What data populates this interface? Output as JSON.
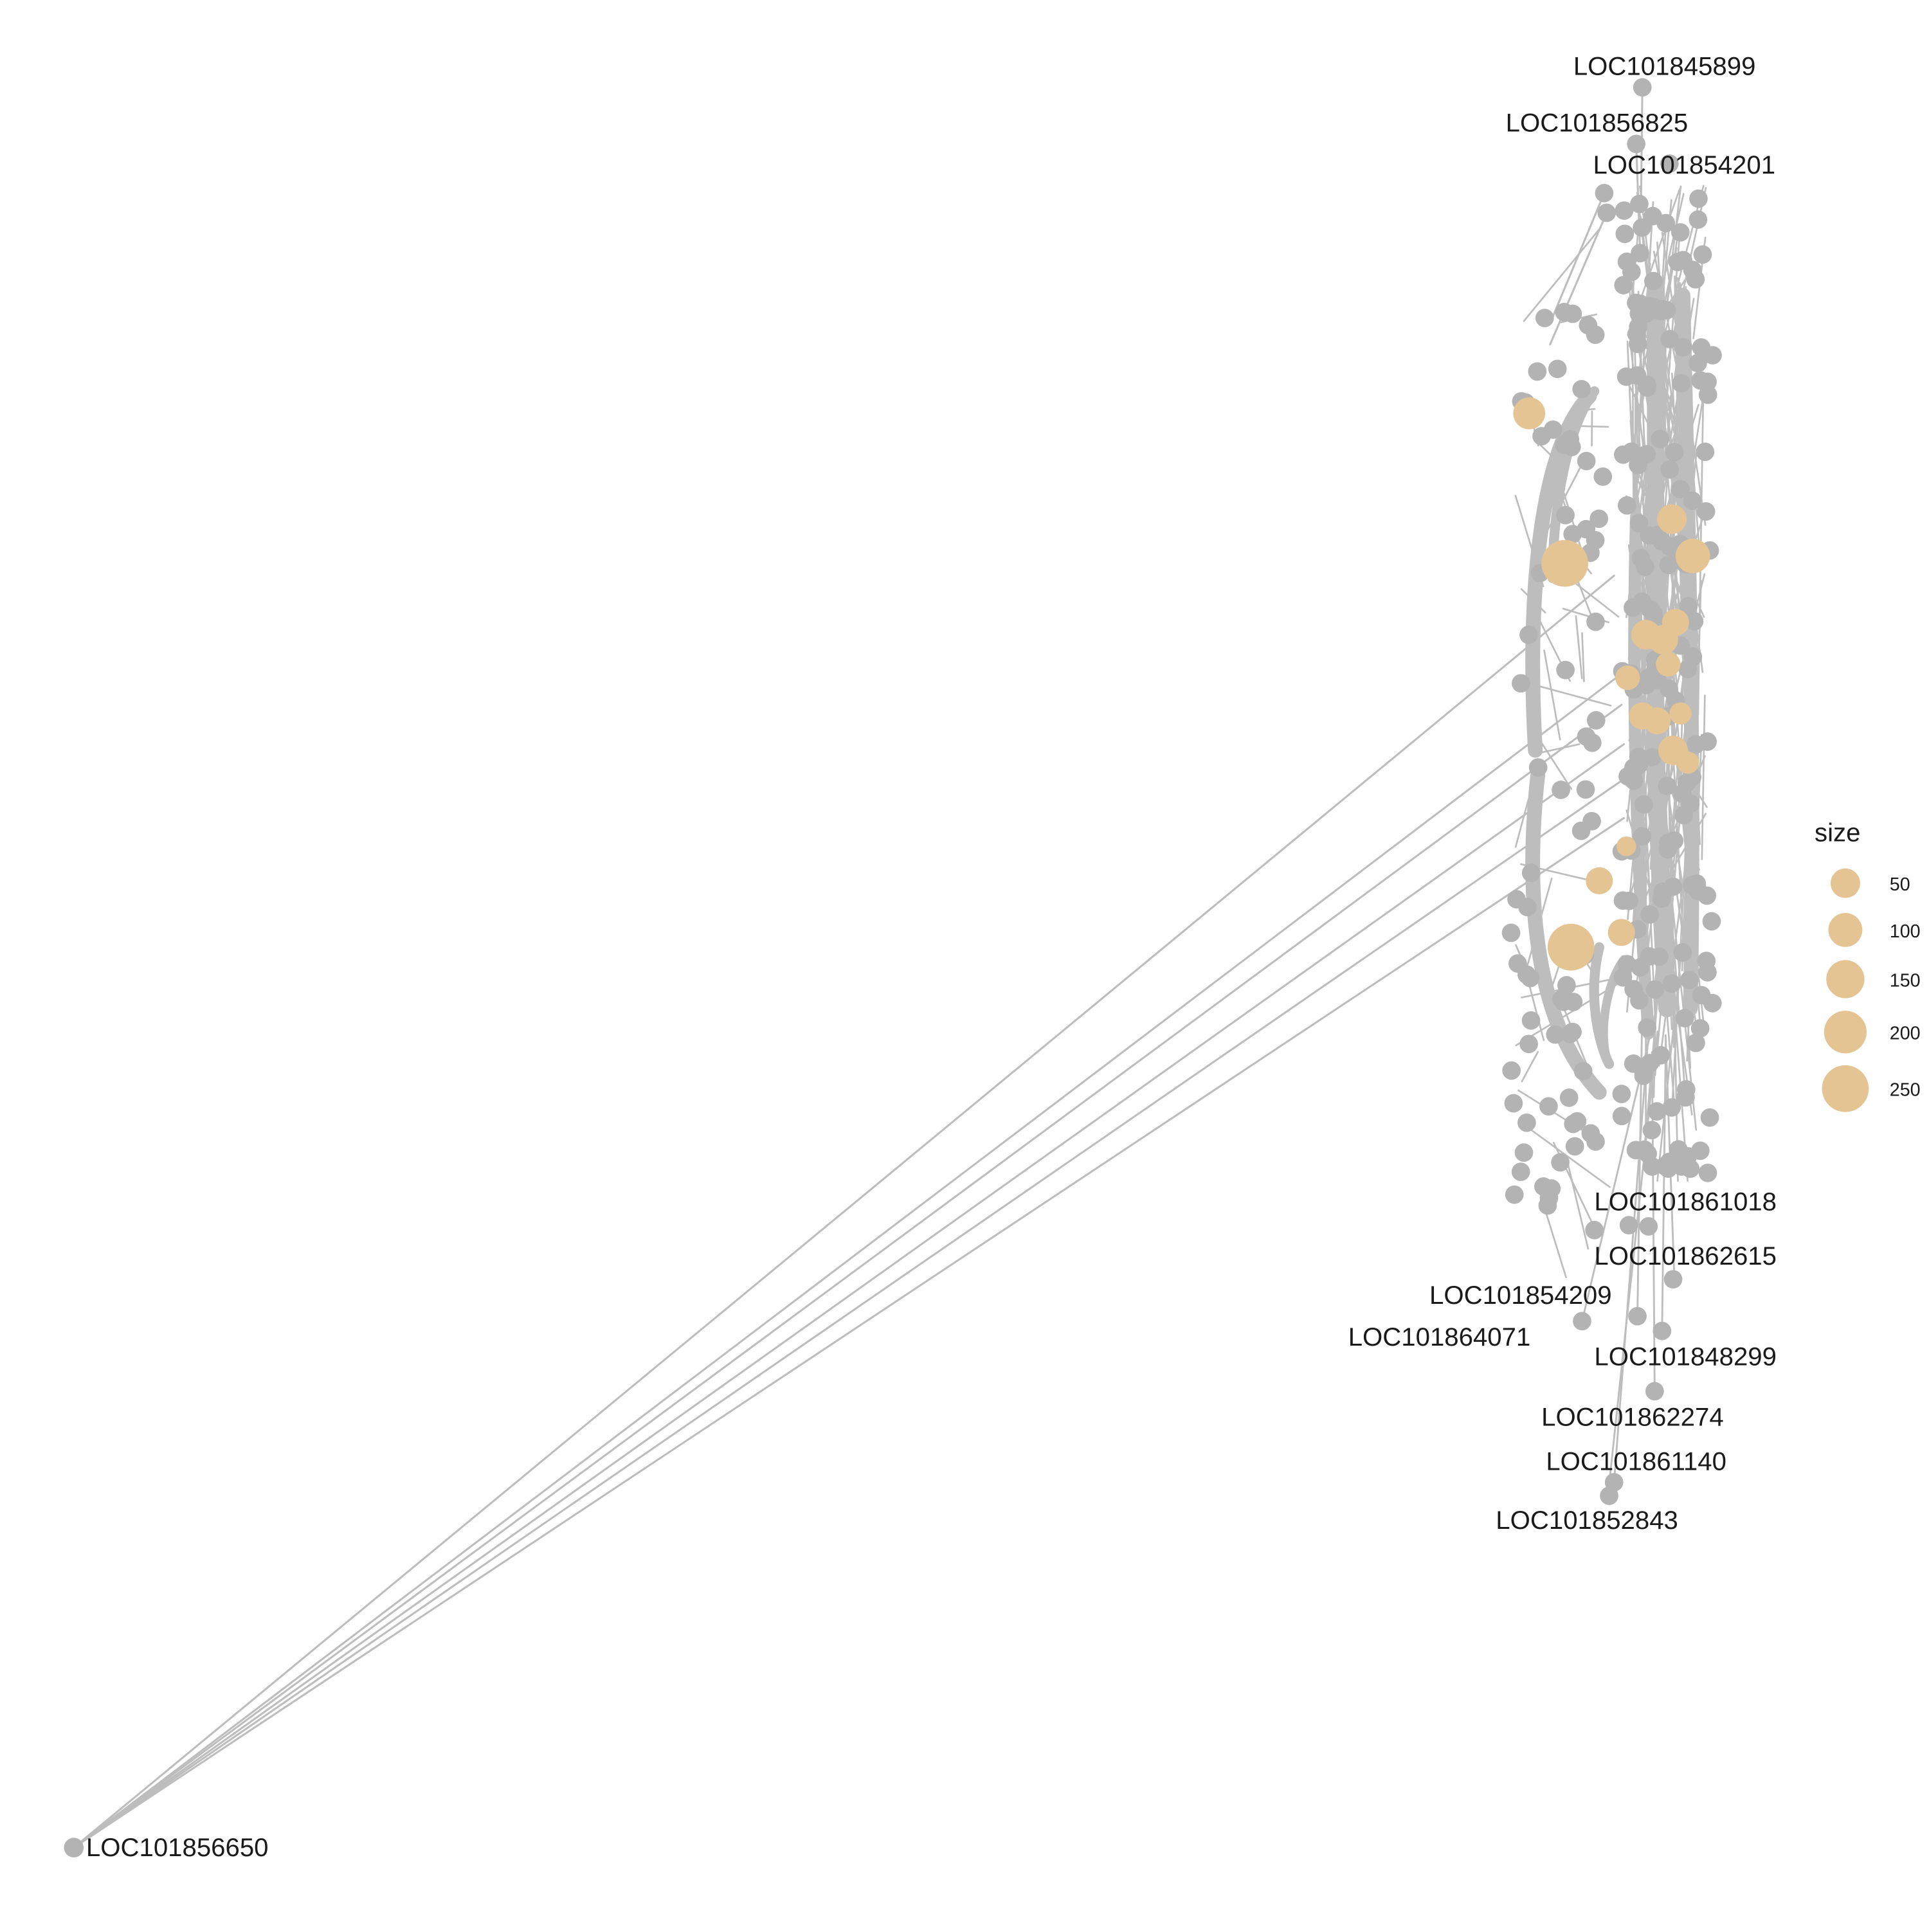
{
  "colors": {
    "background": "#ffffff",
    "edge": "#bdbdbd",
    "node_gene": "#b3b3b3",
    "node_category": "#e5c494",
    "label_text": "#1a1a1a"
  },
  "legend": {
    "title": "size",
    "entries": [
      {
        "label": "50",
        "value": 50
      },
      {
        "label": "100",
        "value": 100
      },
      {
        "label": "150",
        "value": 150
      },
      {
        "label": "200",
        "value": 200
      },
      {
        "label": "250",
        "value": 250
      }
    ]
  },
  "gene_labels": [
    "LOC101845899",
    "LOC101856825",
    "LOC101854201",
    "LOC101861018",
    "LOC101862615",
    "LOC101854209",
    "LOC101864071",
    "LOC101848299",
    "LOC101862274",
    "LOC101861140",
    "LOC101852843",
    "LOC101856650"
  ]
}
